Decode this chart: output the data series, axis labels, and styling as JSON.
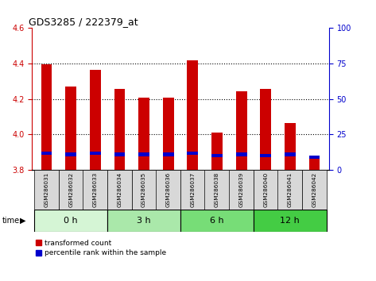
{
  "title": "GDS3285 / 222379_at",
  "samples": [
    "GSM286031",
    "GSM286032",
    "GSM286033",
    "GSM286034",
    "GSM286035",
    "GSM286036",
    "GSM286037",
    "GSM286038",
    "GSM286039",
    "GSM286040",
    "GSM286041",
    "GSM286042"
  ],
  "transformed_count": [
    4.395,
    4.27,
    4.365,
    4.255,
    4.21,
    4.21,
    4.42,
    4.01,
    4.245,
    4.255,
    4.065,
    3.875
  ],
  "percentile_rank": [
    12,
    11,
    12,
    11,
    11,
    11,
    12,
    10,
    11,
    10,
    11,
    9
  ],
  "bar_base": 3.8,
  "ylim_left": [
    3.8,
    4.6
  ],
  "ylim_right": [
    0,
    100
  ],
  "yticks_left": [
    3.8,
    4.0,
    4.2,
    4.4,
    4.6
  ],
  "yticks_right": [
    0,
    25,
    50,
    75,
    100
  ],
  "groups": [
    {
      "label": "0 h",
      "indices": [
        0,
        1,
        2
      ],
      "color": "#d5f5d5"
    },
    {
      "label": "3 h",
      "indices": [
        3,
        4,
        5
      ],
      "color": "#aae8aa"
    },
    {
      "label": "6 h",
      "indices": [
        6,
        7,
        8
      ],
      "color": "#77dd77"
    },
    {
      "label": "12 h",
      "indices": [
        9,
        10,
        11
      ],
      "color": "#44cc44"
    }
  ],
  "bar_color_red": "#cc0000",
  "bar_color_blue": "#0000cc",
  "sample_box_color": "#d8d8d8",
  "bar_width": 0.45,
  "left_tick_color": "#cc0000",
  "right_tick_color": "#0000cc",
  "grid_color": "#000000",
  "title_fontsize": 9
}
